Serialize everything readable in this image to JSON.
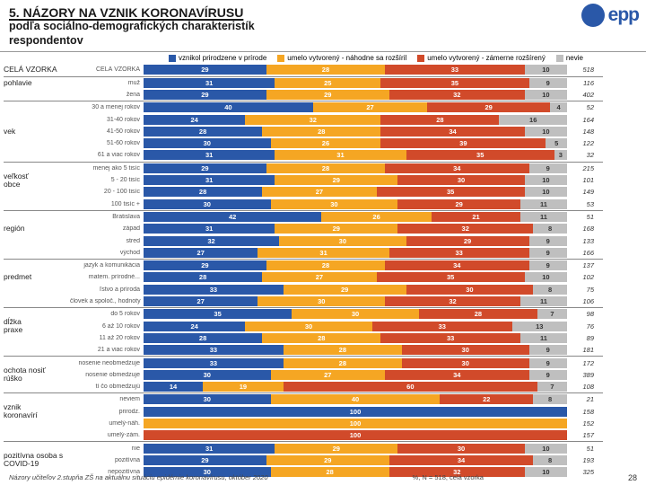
{
  "header": {
    "title": "5. NÁZORY NA VZNIK KORONAVÍRUSU",
    "subtitle1": "podľa sociálno-demografických charakteristík",
    "subtitle2": "respondentov"
  },
  "logo": {
    "text": "epp"
  },
  "legend": {
    "items": [
      {
        "color": "#2a58a8",
        "label": "vznikol prirodzene v prírode"
      },
      {
        "color": "#f5a623",
        "label": "umelo vytvorený - náhodne sa rozšíril"
      },
      {
        "color": "#d14a2a",
        "label": "umelo vytvorený - zámerne rozšírený"
      },
      {
        "color": "#bfbfbf",
        "label": "nevie"
      }
    ]
  },
  "footer": {
    "source": "Názory učiteľov 2.stupňa ZŠ na aktuálnu situáciu epidémie koronavírusu, október 2020",
    "nlabel": "%, N = 518, celá vzorka",
    "page": "28"
  },
  "colors": [
    "#2a58a8",
    "#f5a623",
    "#d14a2a",
    "#bfbfbf"
  ],
  "groups": [
    {
      "label": "CELÁ VZORKA",
      "rows": [
        {
          "rl": "CELÁ VZORKA",
          "seg": [
            29,
            28,
            33,
            10
          ],
          "n": 518
        }
      ]
    },
    {
      "label": "pohlavie",
      "rows": [
        {
          "rl": "muž",
          "seg": [
            31,
            25,
            35,
            9
          ],
          "n": 116
        },
        {
          "rl": "žena",
          "seg": [
            29,
            29,
            32,
            10
          ],
          "n": 402
        }
      ]
    },
    {
      "label": "vek",
      "rows": [
        {
          "rl": "30 a menej rokov",
          "seg": [
            40,
            27,
            29,
            4
          ],
          "n": 52
        },
        {
          "rl": "31-40 rokov",
          "seg": [
            24,
            32,
            28,
            16
          ],
          "n": 164
        },
        {
          "rl": "41-50 rokov",
          "seg": [
            28,
            28,
            34,
            10
          ],
          "n": 148
        },
        {
          "rl": "51-60 rokov",
          "seg": [
            30,
            26,
            39,
            5
          ],
          "n": 122
        },
        {
          "rl": "61 a viac rokov",
          "seg": [
            31,
            31,
            35,
            3
          ],
          "n": 32
        }
      ]
    },
    {
      "label": "veľkosť\nobce",
      "rows": [
        {
          "rl": "menej ako 5 tisíc",
          "seg": [
            29,
            28,
            34,
            9
          ],
          "n": 215
        },
        {
          "rl": "5 - 20 tisíc",
          "seg": [
            31,
            29,
            30,
            10
          ],
          "n": 101
        },
        {
          "rl": "20 - 100 tisíc",
          "seg": [
            28,
            27,
            35,
            10
          ],
          "n": 149
        },
        {
          "rl": "100 tisíc +",
          "seg": [
            30,
            30,
            29,
            11
          ],
          "n": 53
        }
      ]
    },
    {
      "label": "región",
      "rows": [
        {
          "rl": "Bratislava",
          "seg": [
            42,
            26,
            21,
            11
          ],
          "n": 51
        },
        {
          "rl": "západ",
          "seg": [
            31,
            29,
            32,
            8
          ],
          "n": 168
        },
        {
          "rl": "stred",
          "seg": [
            32,
            30,
            29,
            9
          ],
          "n": 133
        },
        {
          "rl": "východ",
          "seg": [
            27,
            31,
            33,
            9
          ],
          "n": 166
        }
      ]
    },
    {
      "label": "predmet",
      "rows": [
        {
          "rl": "jazyk a komunikácia",
          "seg": [
            29,
            28,
            34,
            9
          ],
          "n": 137
        },
        {
          "rl": "matem. prírodné...",
          "seg": [
            28,
            27,
            35,
            10
          ],
          "n": 102
        },
        {
          "rl": "ľstvo a príroda",
          "seg": [
            33,
            29,
            30,
            8
          ],
          "n": 75
        },
        {
          "rl": "človek a spoloč., hodnoty",
          "seg": [
            27,
            30,
            32,
            11
          ],
          "n": 106
        }
      ]
    },
    {
      "label": "dĺžka\npraxe",
      "rows": [
        {
          "rl": "do 5 rokov",
          "seg": [
            35,
            30,
            28,
            7
          ],
          "n": 98
        },
        {
          "rl": "6 až 10 rokov",
          "seg": [
            24,
            30,
            33,
            13
          ],
          "n": 76
        },
        {
          "rl": "11 až 20 rokov",
          "seg": [
            28,
            28,
            33,
            11
          ],
          "n": 89
        },
        {
          "rl": "21 a viac rokov",
          "seg": [
            33,
            28,
            30,
            9
          ],
          "n": 181
        }
      ]
    },
    {
      "label": "ochota nosiť\nrúško",
      "rows": [
        {
          "rl": "nosenie neobmedzuje",
          "seg": [
            33,
            28,
            30,
            9
          ],
          "n": 172
        },
        {
          "rl": "nosenie obmedzuje",
          "seg": [
            30,
            27,
            34,
            9
          ],
          "n": 389
        },
        {
          "rl": "tí čo obmedzujú",
          "seg": [
            14,
            19,
            60,
            7
          ],
          "n": 108
        }
      ]
    },
    {
      "label": "vznik\nkoronavírí",
      "rows": [
        {
          "rl": "neviem",
          "seg": [
            30,
            40,
            22,
            8
          ],
          "n": 21
        },
        {
          "rl": "prirodz.",
          "seg": [
            100,
            0,
            0,
            0
          ],
          "n": 158
        },
        {
          "rl": "umelý-náh.",
          "seg": [
            0,
            100,
            0,
            0
          ],
          "n": 152
        },
        {
          "rl": "umelý-zám.",
          "seg": [
            0,
            0,
            100,
            0
          ],
          "n": 157
        }
      ]
    },
    {
      "label": "pozitívna osoba s\nCOVID-19",
      "rows": [
        {
          "rl": "nie",
          "seg": [
            31,
            29,
            30,
            10
          ],
          "n": 51
        },
        {
          "rl": "pozitívna",
          "seg": [
            29,
            29,
            34,
            8
          ],
          "n": 193
        },
        {
          "rl": "nepozitívna",
          "seg": [
            30,
            28,
            32,
            10
          ],
          "n": 325
        }
      ]
    }
  ]
}
